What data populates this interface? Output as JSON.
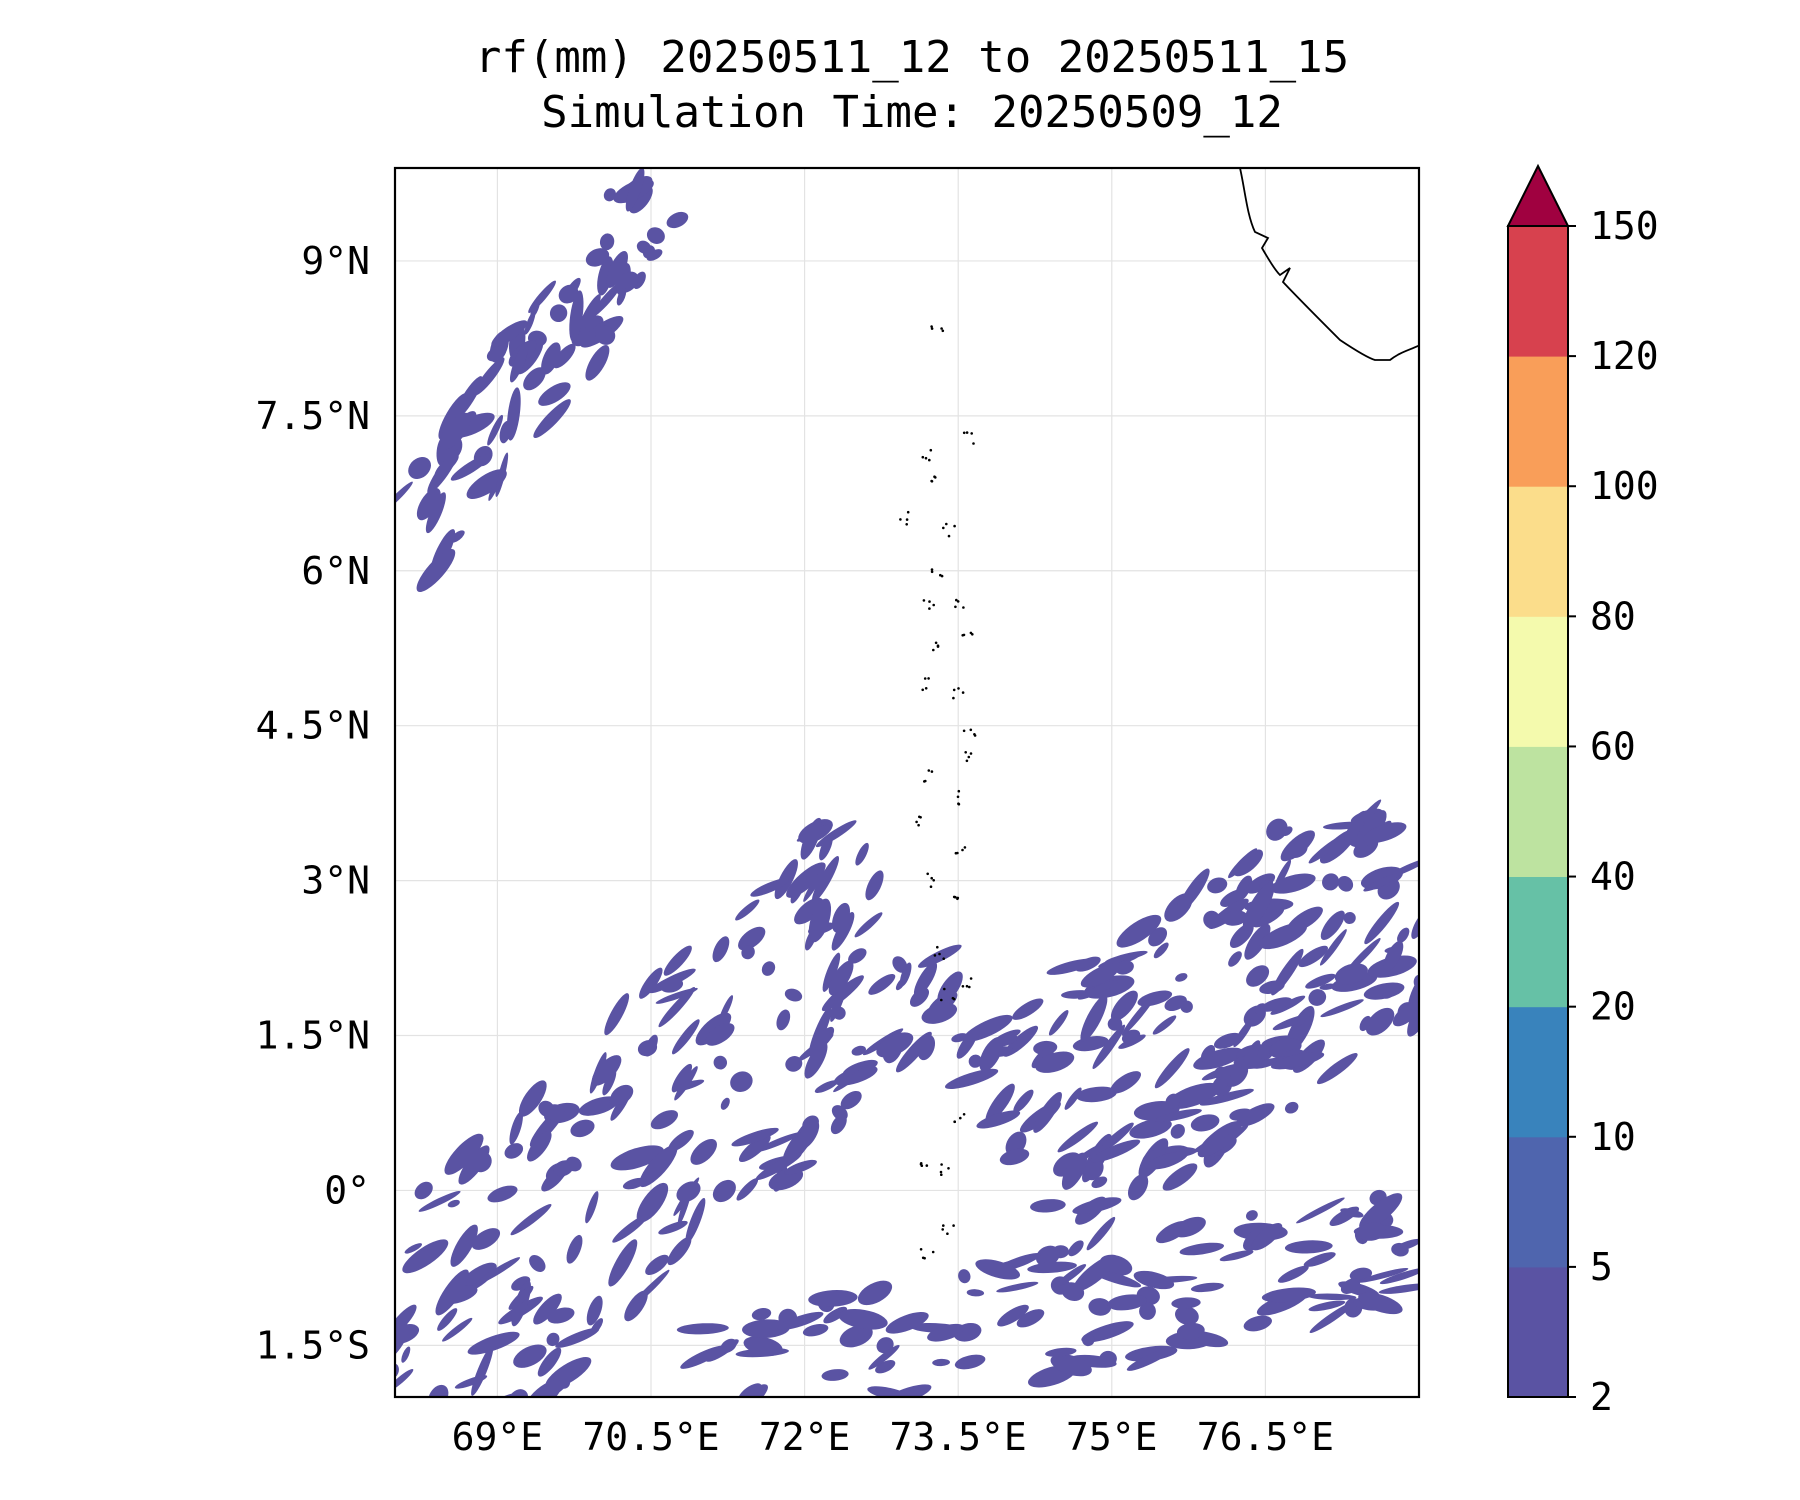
{
  "title": {
    "line1": "rf(mm) 20250511_12 to 20250511_15",
    "line2": "Simulation Time: 20250509_12"
  },
  "map": {
    "lon_range": [
      68.0,
      78.0
    ],
    "lat_range": [
      -2.0,
      9.9
    ],
    "grid": true,
    "coastline_color": "#000000",
    "rain_color": "#5a53a3",
    "xticks": [
      {
        "value": 69.0,
        "label": "69°E"
      },
      {
        "value": 70.5,
        "label": "70.5°E"
      },
      {
        "value": 72.0,
        "label": "72°E"
      },
      {
        "value": 73.5,
        "label": "73.5°E"
      },
      {
        "value": 75.0,
        "label": "75°E"
      },
      {
        "value": 76.5,
        "label": "76.5°E"
      }
    ],
    "yticks": [
      {
        "value": 9.0,
        "label": "9°N"
      },
      {
        "value": 7.5,
        "label": "7.5°N"
      },
      {
        "value": 6.0,
        "label": "6°N"
      },
      {
        "value": 4.5,
        "label": "4.5°N"
      },
      {
        "value": 3.0,
        "label": "3°N"
      },
      {
        "value": 1.5,
        "label": "1.5°N"
      },
      {
        "value": 0.0,
        "label": "0°"
      },
      {
        "value": -1.5,
        "label": "1.5°S"
      }
    ],
    "rain_bands": [
      {
        "name": "northwest-band",
        "lon_start": 68.1,
        "lat_start": 6.2,
        "lon_end": 70.6,
        "lat_end": 9.6,
        "width_deg": 0.9,
        "count": 70
      },
      {
        "name": "southern-band-west",
        "lon_start": 68.0,
        "lat_start": -1.8,
        "lon_end": 73.0,
        "lat_end": 2.8,
        "width_deg": 2.4,
        "count": 190
      },
      {
        "name": "southern-band-east",
        "lon_start": 74.0,
        "lat_start": 0.4,
        "lon_end": 78.0,
        "lat_end": 3.0,
        "width_deg": 2.4,
        "count": 200
      },
      {
        "name": "southern-band-south",
        "lon_start": 71.0,
        "lat_start": -1.9,
        "lon_end": 78.0,
        "lat_end": -0.5,
        "width_deg": 1.2,
        "count": 110
      }
    ],
    "islands": [
      [
        73.2,
        7.1
      ],
      [
        73.3,
        6.9
      ],
      [
        73.0,
        6.5
      ],
      [
        73.4,
        6.4
      ],
      [
        73.3,
        6.0
      ],
      [
        73.2,
        5.7
      ],
      [
        73.5,
        5.7
      ],
      [
        73.3,
        5.3
      ],
      [
        73.6,
        5.4
      ],
      [
        73.2,
        4.9
      ],
      [
        73.5,
        4.8
      ],
      [
        73.6,
        4.4
      ],
      [
        73.6,
        4.2
      ],
      [
        73.2,
        4.0
      ],
      [
        73.5,
        3.8
      ],
      [
        73.1,
        3.6
      ],
      [
        73.5,
        3.3
      ],
      [
        73.2,
        3.0
      ],
      [
        73.5,
        2.8
      ],
      [
        73.3,
        2.3
      ],
      [
        73.6,
        2.0
      ],
      [
        73.4,
        1.9
      ],
      [
        73.5,
        0.7
      ],
      [
        73.2,
        0.3
      ],
      [
        73.4,
        0.2
      ],
      [
        73.2,
        -0.6
      ],
      [
        73.4,
        -0.4
      ],
      [
        73.3,
        8.3
      ],
      [
        73.6,
        7.3
      ]
    ]
  },
  "colorbar": {
    "levels": [
      "2",
      "5",
      "10",
      "20",
      "40",
      "60",
      "80",
      "100",
      "120",
      "150"
    ],
    "colors": [
      "#5a53a3",
      "#4f65ae",
      "#3983bc",
      "#66c1a6",
      "#bde3a0",
      "#f4faad",
      "#fbdd8b",
      "#f99e59",
      "#d7414e"
    ],
    "extend_color": "#a00140"
  }
}
